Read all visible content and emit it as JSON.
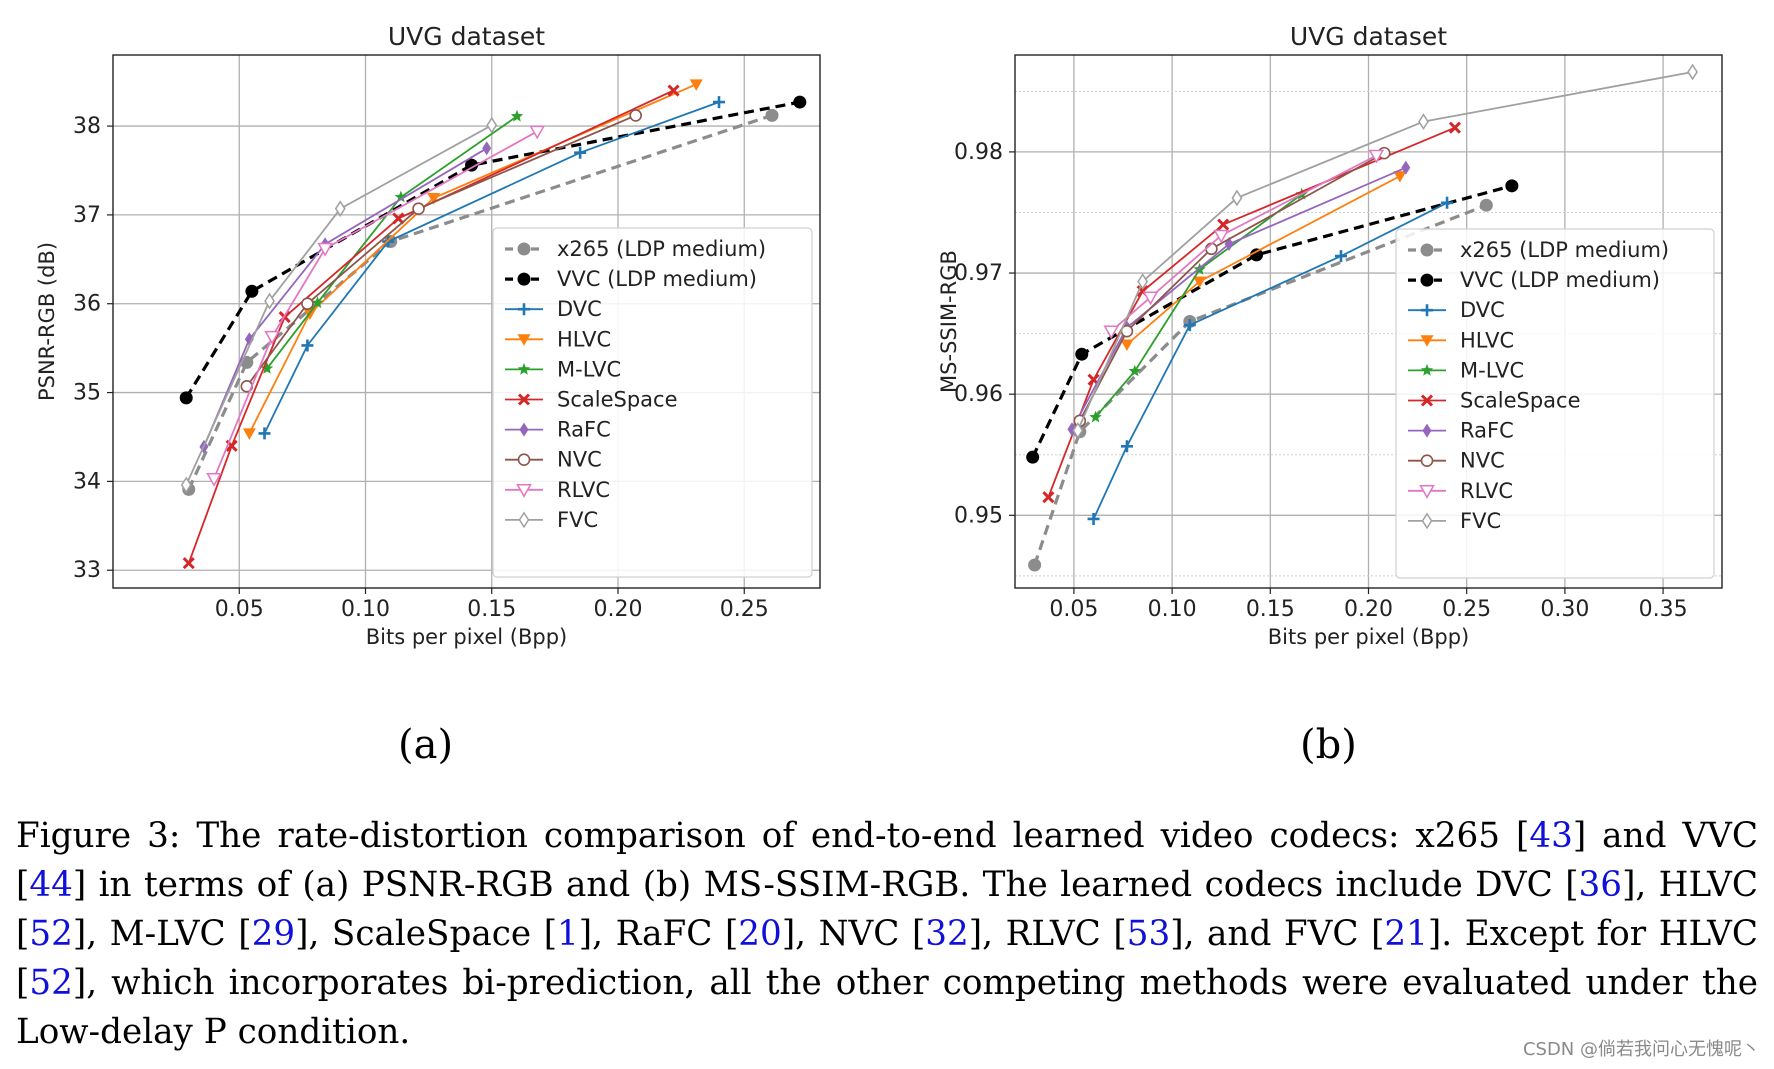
{
  "colors": {
    "x265": "#8c8c8c",
    "vvc": "#000000",
    "dvc": "#1f77b4",
    "hlvc": "#ff7f0e",
    "mlvc": "#2ca02c",
    "scalespace": "#d62728",
    "rafc": "#9467bd",
    "nvc": "#8c564b",
    "rlvc": "#e377c2",
    "fvc": "#a0a0a0",
    "link": "#1010d8"
  },
  "chart_data": [
    {
      "id": "a",
      "type": "line",
      "title": "UVG dataset",
      "xlabel": "Bits per pixel (Bpp)",
      "ylabel": "PSNR-RGB (dB)",
      "xlim": [
        0.0,
        0.28
      ],
      "ylim": [
        32.8,
        38.8
      ],
      "xticks": [
        0.05,
        0.1,
        0.15,
        0.2,
        0.25
      ],
      "xtick_labels": [
        "0.05",
        "0.10",
        "0.15",
        "0.20",
        "0.25"
      ],
      "yticks": [
        33,
        34,
        35,
        36,
        37,
        38
      ],
      "ytick_labels": [
        "33",
        "34",
        "35",
        "36",
        "37",
        "38"
      ],
      "grid": true,
      "legend_position": "center-right",
      "series": [
        {
          "name": "x265 (LDP medium)",
          "key": "x265",
          "marker": "circle",
          "dash": true,
          "x": [
            0.03,
            0.053,
            0.11,
            0.261
          ],
          "y": [
            33.91,
            35.34,
            36.7,
            38.12
          ]
        },
        {
          "name": "VVC (LDP medium)",
          "key": "vvc",
          "marker": "circle",
          "dash": true,
          "x": [
            0.029,
            0.055,
            0.142,
            0.272
          ],
          "y": [
            34.94,
            36.14,
            37.56,
            38.27
          ]
        },
        {
          "name": "DVC",
          "key": "dvc",
          "marker": "plus",
          "x": [
            0.06,
            0.077,
            0.109,
            0.185,
            0.24
          ],
          "y": [
            34.54,
            35.53,
            36.7,
            37.7,
            38.27
          ]
        },
        {
          "name": "HLVC",
          "key": "hlvc",
          "marker": "tri-down",
          "x": [
            0.054,
            0.078,
            0.127,
            0.231
          ],
          "y": [
            34.54,
            35.89,
            37.19,
            38.47
          ]
        },
        {
          "name": "M-LVC",
          "key": "mlvc",
          "marker": "star",
          "x": [
            0.061,
            0.081,
            0.114,
            0.16
          ],
          "y": [
            35.27,
            36.01,
            37.2,
            38.11
          ]
        },
        {
          "name": "ScaleSpace",
          "key": "scalespace",
          "marker": "x",
          "x": [
            0.03,
            0.047,
            0.068,
            0.113,
            0.222
          ],
          "y": [
            33.08,
            34.4,
            35.85,
            36.96,
            38.4
          ]
        },
        {
          "name": "RaFC",
          "key": "rafc",
          "marker": "diamond",
          "x": [
            0.036,
            0.054,
            0.084,
            0.148
          ],
          "y": [
            34.39,
            35.6,
            36.67,
            37.75
          ]
        },
        {
          "name": "NVC",
          "key": "nvc",
          "marker": "open-circle",
          "x": [
            0.053,
            0.077,
            0.121,
            0.207
          ],
          "y": [
            35.07,
            36.0,
            37.07,
            38.12
          ]
        },
        {
          "name": "RLVC",
          "key": "rlvc",
          "marker": "open-tri-down",
          "x": [
            0.04,
            0.063,
            0.084,
            0.168
          ],
          "y": [
            34.03,
            35.63,
            36.62,
            37.94
          ]
        },
        {
          "name": "FVC",
          "key": "fvc",
          "marker": "open-diamond",
          "x": [
            0.029,
            0.062,
            0.09,
            0.15
          ],
          "y": [
            33.96,
            36.03,
            37.07,
            38.01
          ]
        }
      ]
    },
    {
      "id": "b",
      "type": "line",
      "title": "UVG dataset",
      "xlabel": "Bits per pixel (Bpp)",
      "ylabel": "MS-SSIM-RGB",
      "xlim": [
        0.02,
        0.38
      ],
      "ylim": [
        0.944,
        0.988
      ],
      "xticks": [
        0.05,
        0.1,
        0.15,
        0.2,
        0.25,
        0.3,
        0.35
      ],
      "xtick_labels": [
        "0.05",
        "0.10",
        "0.15",
        "0.20",
        "0.25",
        "0.30",
        "0.35"
      ],
      "yticks": [
        0.95,
        0.96,
        0.97,
        0.98
      ],
      "ytick_labels": [
        "0.95",
        "0.96",
        "0.97",
        "0.98"
      ],
      "minor_yticks": [
        0.945,
        0.955,
        0.965,
        0.975,
        0.985
      ],
      "grid": true,
      "legend_position": "lower-right",
      "series": [
        {
          "name": "x265 (LDP medium)",
          "key": "x265",
          "marker": "circle",
          "dash": true,
          "x": [
            0.03,
            0.053,
            0.109,
            0.26
          ],
          "y": [
            0.9459,
            0.9569,
            0.966,
            0.9756
          ]
        },
        {
          "name": "VVC (LDP medium)",
          "key": "vvc",
          "marker": "circle",
          "dash": true,
          "x": [
            0.029,
            0.054,
            0.143,
            0.273
          ],
          "y": [
            0.9548,
            0.9633,
            0.9715,
            0.9772
          ]
        },
        {
          "name": "DVC",
          "key": "dvc",
          "marker": "plus",
          "x": [
            0.06,
            0.077,
            0.109,
            0.186,
            0.24
          ],
          "y": [
            0.9497,
            0.9557,
            0.9657,
            0.9714,
            0.9758
          ]
        },
        {
          "name": "HLVC",
          "key": "hlvc",
          "marker": "tri-down",
          "x": [
            0.077,
            0.114,
            0.216
          ],
          "y": [
            0.9641,
            0.9693,
            0.978
          ]
        },
        {
          "name": "M-LVC",
          "key": "mlvc",
          "marker": "star",
          "x": [
            0.061,
            0.081,
            0.114,
            0.166
          ],
          "y": [
            0.9581,
            0.9619,
            0.9703,
            0.9765
          ]
        },
        {
          "name": "ScaleSpace",
          "key": "scalespace",
          "marker": "x",
          "x": [
            0.037,
            0.06,
            0.085,
            0.126,
            0.244
          ],
          "y": [
            0.9515,
            0.9612,
            0.9685,
            0.974,
            0.982
          ]
        },
        {
          "name": "RaFC",
          "key": "rafc",
          "marker": "diamond",
          "x": [
            0.049,
            0.077,
            0.129,
            0.219
          ],
          "y": [
            0.9571,
            0.9655,
            0.9724,
            0.9787
          ]
        },
        {
          "name": "NVC",
          "key": "nvc",
          "marker": "open-circle",
          "x": [
            0.053,
            0.077,
            0.12,
            0.208
          ],
          "y": [
            0.9578,
            0.9652,
            0.972,
            0.9799
          ]
        },
        {
          "name": "RLVC",
          "key": "rlvc",
          "marker": "open-tri-down",
          "x": [
            0.069,
            0.089,
            0.125,
            0.204
          ],
          "y": [
            0.9652,
            0.968,
            0.9731,
            0.9797
          ]
        },
        {
          "name": "FVC",
          "key": "fvc",
          "marker": "open-diamond",
          "x": [
            0.052,
            0.085,
            0.133,
            0.228,
            0.365
          ],
          "y": [
            0.957,
            0.9693,
            0.9762,
            0.9825,
            0.9866
          ]
        }
      ]
    }
  ],
  "subfigure_labels": [
    "(a)",
    "(b)"
  ],
  "caption": [
    {
      "t": "Figure 3: The rate-distortion comparison of end-to-end learned video codecs: x265 ["
    },
    {
      "t": "43",
      "ref": true
    },
    {
      "t": "] and VVC ["
    },
    {
      "t": "44",
      "ref": true
    },
    {
      "t": "] in terms of (a) PSNR-RGB and (b) MS-SSIM-RGB. The learned codecs include DVC ["
    },
    {
      "t": "36",
      "ref": true
    },
    {
      "t": "], HLVC ["
    },
    {
      "t": "52",
      "ref": true
    },
    {
      "t": "], M-LVC ["
    },
    {
      "t": "29",
      "ref": true
    },
    {
      "t": "], ScaleSpace ["
    },
    {
      "t": "1",
      "ref": true
    },
    {
      "t": "], RaFC ["
    },
    {
      "t": "20",
      "ref": true
    },
    {
      "t": "], NVC ["
    },
    {
      "t": "32",
      "ref": true
    },
    {
      "t": "], RLVC ["
    },
    {
      "t": "53",
      "ref": true
    },
    {
      "t": "], and FVC ["
    },
    {
      "t": "21",
      "ref": true
    },
    {
      "t": "]. Except for HLVC ["
    },
    {
      "t": "52",
      "ref": true
    },
    {
      "t": "], which incorporates bi-prediction, all the other competing methods were evaluated under the Low-delay P condition."
    }
  ],
  "watermark": "CSDN @倘若我问心无愧呢丶"
}
